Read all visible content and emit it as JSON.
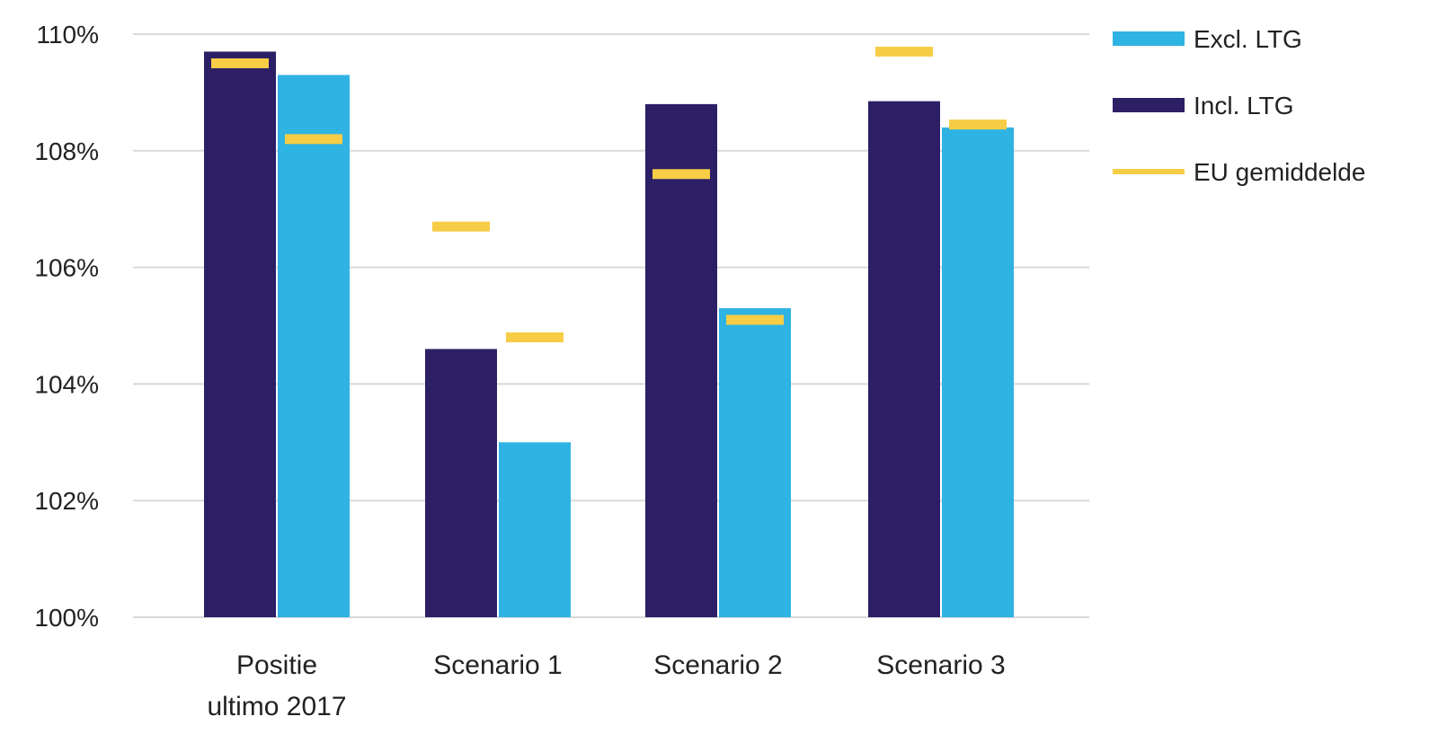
{
  "colors": {
    "incl": "#2c1f66",
    "excl": "#2fb3e3",
    "eu": "#f7cd46",
    "grid": "#d9d9d9",
    "text": "#222222"
  },
  "legend": {
    "items": [
      {
        "label": "Excl. LTG",
        "series": "excl",
        "kind": "bar"
      },
      {
        "label": "Incl. LTG",
        "series": "incl",
        "kind": "bar"
      },
      {
        "label": "EU gemiddelde",
        "series": "eu",
        "kind": "line"
      }
    ]
  },
  "chart_data": {
    "type": "bar",
    "categories": [
      [
        "Positie",
        "ultimo 2017"
      ],
      [
        "Scenario 1"
      ],
      [
        "Scenario 2"
      ],
      [
        "Scenario 3"
      ]
    ],
    "yticks": [
      "100%",
      "102%",
      "104%",
      "106%",
      "108%",
      "110%"
    ],
    "ylim": [
      100,
      110
    ],
    "grid": true,
    "legend_position": "right",
    "series": [
      {
        "name": "Incl. LTG",
        "key": "incl",
        "values": [
          109.7,
          104.6,
          108.8,
          108.85
        ]
      },
      {
        "name": "Excl. LTG",
        "key": "excl",
        "values": [
          109.3,
          103.0,
          105.3,
          108.4
        ]
      }
    ],
    "eu_average": {
      "name": "EU gemiddelde",
      "incl": [
        109.5,
        106.7,
        107.6,
        109.7
      ],
      "excl": [
        108.2,
        104.8,
        105.1,
        108.45
      ]
    }
  }
}
